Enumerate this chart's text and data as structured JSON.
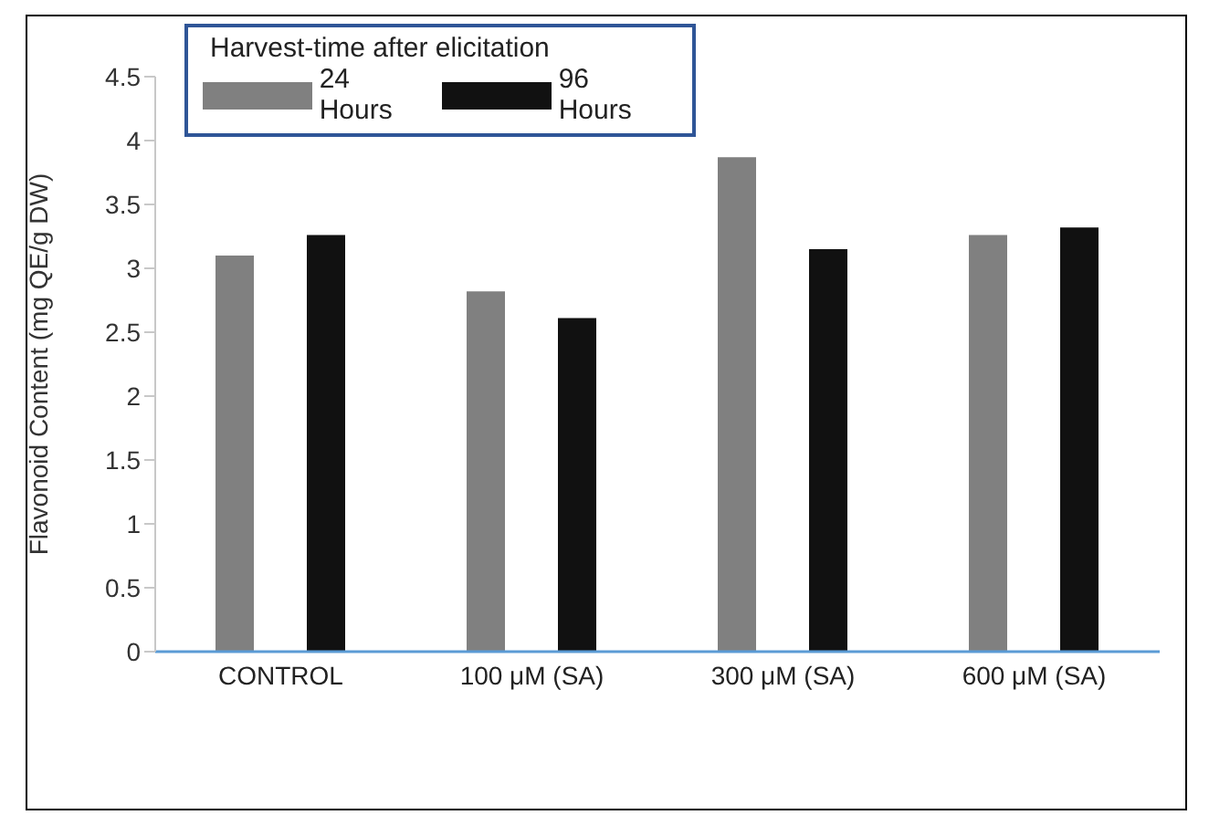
{
  "chart_data": {
    "type": "bar",
    "ylabel": "Flavonoid Content (mg QE/g DW)",
    "legend_title": "Harvest-time after elicitation",
    "categories": [
      "CONTROL",
      "100 μM (SA)",
      "300 μM (SA)",
      "600 μM (SA)"
    ],
    "series": [
      {
        "name": "24 Hours",
        "color": "#808080",
        "values": [
          3.1,
          2.82,
          3.87,
          3.26
        ]
      },
      {
        "name": "96 Hours",
        "color": "#111111",
        "values": [
          3.26,
          2.61,
          3.15,
          3.32
        ]
      }
    ],
    "ylim": [
      0,
      4.5
    ],
    "yticks": [
      0,
      0.5,
      1,
      1.5,
      2,
      2.5,
      3,
      3.5,
      4,
      4.5
    ],
    "grid": false,
    "legend": "top left"
  }
}
